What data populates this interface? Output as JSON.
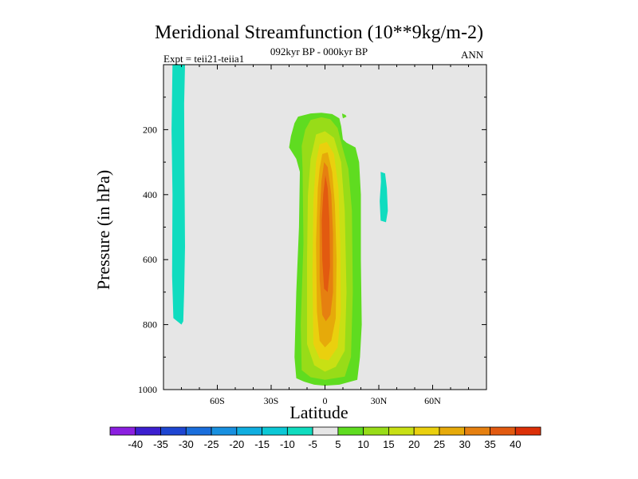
{
  "chart_data": {
    "type": "contour",
    "title": "Meridional Streamfunction (10**9kg/m-2)",
    "subtitle": "092kyr BP - 000kyr BP",
    "left_label": "Expt = teii21-teiia1",
    "right_label": "ANN",
    "xlabel": "Latitude",
    "ylabel": "Pressure (in hPa)",
    "x_ticks": [
      "60S",
      "30S",
      "0",
      "30N",
      "60N"
    ],
    "x_tick_values": [
      -60,
      -30,
      0,
      30,
      60
    ],
    "y_ticks": [
      "200",
      "400",
      "600",
      "800",
      "1000"
    ],
    "y_tick_values": [
      200,
      400,
      600,
      800,
      1000
    ],
    "xlim": [
      -90,
      90
    ],
    "ylim": [
      0,
      1000
    ],
    "y_inverted": true,
    "background_color": "#e6e6e6",
    "colorbar": {
      "labels": [
        "-40",
        "-35",
        "-30",
        "-25",
        "-20",
        "-15",
        "-10",
        "-5",
        "5",
        "10",
        "15",
        "20",
        "25",
        "30",
        "35",
        "40"
      ],
      "colors": [
        "#8b1fe0",
        "#3c1fd0",
        "#1e46d2",
        "#1a6edc",
        "#1890e0",
        "#10aee0",
        "#0cc8d6",
        "#10dcbf",
        "#e6e6e6",
        "#5fdc20",
        "#98dc18",
        "#c8e014",
        "#ead00e",
        "#e6aa0a",
        "#e68010",
        "#e25a10",
        "#dc3008"
      ]
    },
    "regions": [
      {
        "name": "negative-cell-left",
        "level": "-5 to -10",
        "color": "#10dcbf",
        "lat": [
          -85,
          -78
        ],
        "pressure": [
          0,
          800
        ]
      },
      {
        "name": "negative-cell-right",
        "level": "-5 to -10",
        "color": "#10dcbf",
        "lat": [
          31,
          36
        ],
        "pressure": [
          330,
          480
        ]
      },
      {
        "name": "positive-cell-equatorial",
        "level": "5 to 40",
        "color": "#5fdc20",
        "lat": [
          -20,
          22
        ],
        "pressure": [
          145,
          985
        ],
        "max_value": "35-40",
        "max_near_lat": 0,
        "max_near_pressure": 500
      }
    ]
  }
}
